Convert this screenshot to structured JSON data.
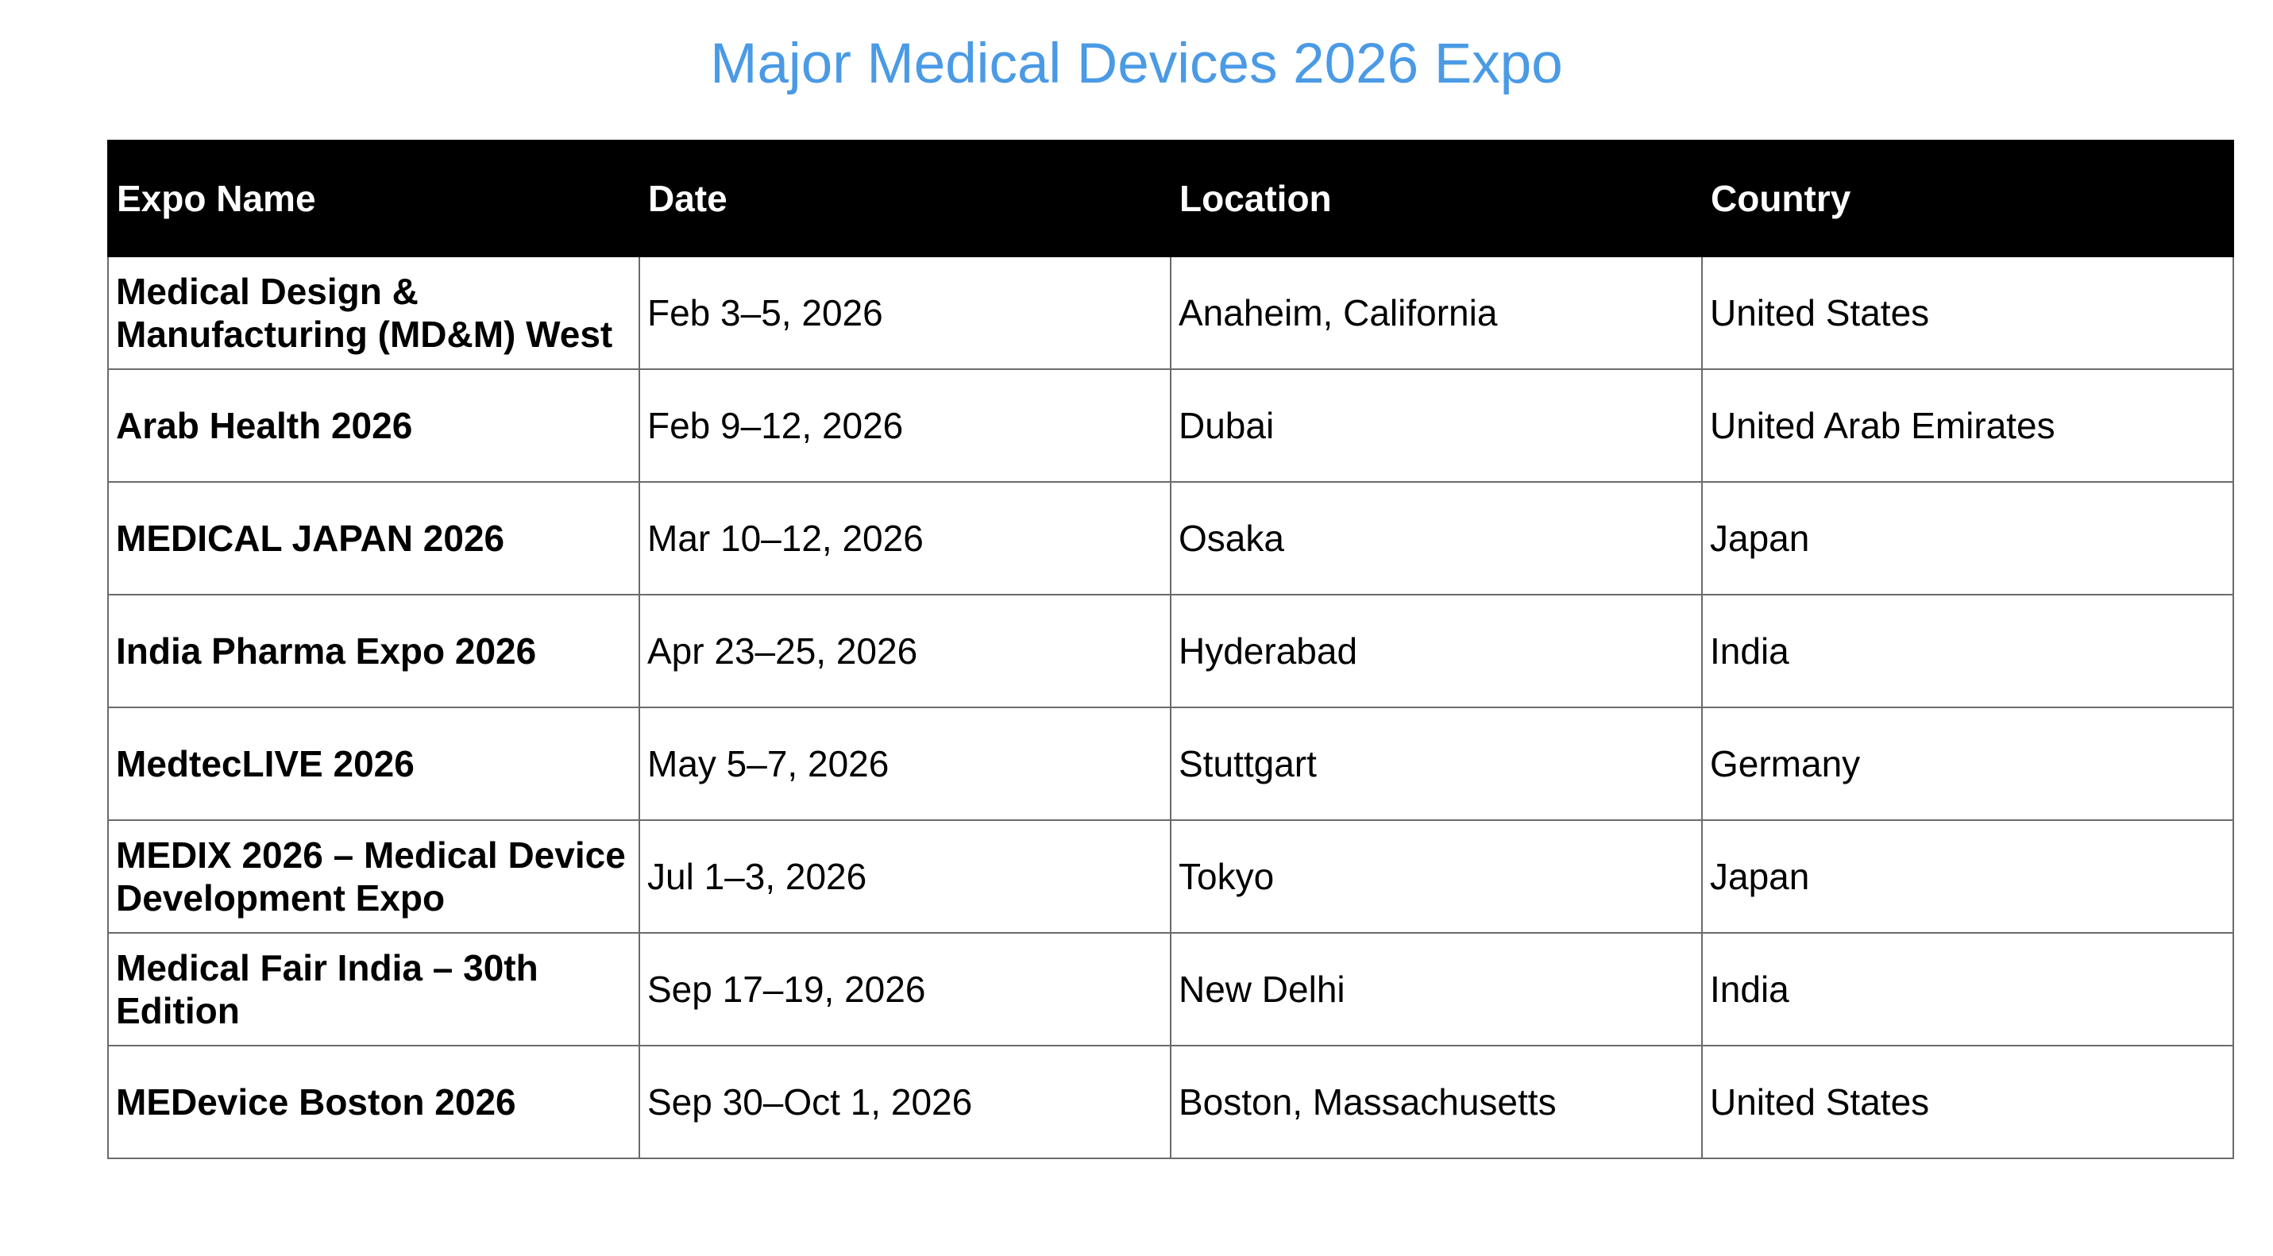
{
  "title": "Major Medical Devices 2026 Expo",
  "colors": {
    "title": "#4a9ae5",
    "header_background": "#000000",
    "header_text": "#ffffff",
    "border": "#6b6b6b"
  },
  "table": {
    "headers": [
      "Expo Name",
      "Date",
      "Location",
      "Country"
    ],
    "rows": [
      {
        "name": "Medical Design & Manufacturing (MD&M) West",
        "date": "Feb 3–5, 2026",
        "location": "Anaheim, California",
        "country": "United States"
      },
      {
        "name": "Arab Health 2026",
        "date": "Feb 9–12, 2026",
        "location": "Dubai",
        "country": "United Arab Emirates"
      },
      {
        "name": "MEDICAL JAPAN 2026",
        "date": "Mar 10–12, 2026",
        "location": "Osaka",
        "country": "Japan"
      },
      {
        "name": "India Pharma Expo 2026",
        "date": "Apr 23–25, 2026",
        "location": "Hyderabad",
        "country": "India"
      },
      {
        "name": "MedtecLIVE 2026",
        "date": "May 5–7, 2026",
        "location": "Stuttgart",
        "country": "Germany"
      },
      {
        "name": "MEDIX 2026 – Medical Device Development Expo",
        "date": "Jul 1–3, 2026",
        "location": "Tokyo",
        "country": "Japan"
      },
      {
        "name": "Medical Fair India – 30th Edition",
        "date": "Sep 17–19, 2026",
        "location": "New Delhi",
        "country": "India"
      },
      {
        "name": "MEDevice Boston 2026",
        "date": "Sep 30–Oct 1, 2026",
        "location": "Boston, Massachusetts",
        "country": "United States"
      }
    ]
  }
}
